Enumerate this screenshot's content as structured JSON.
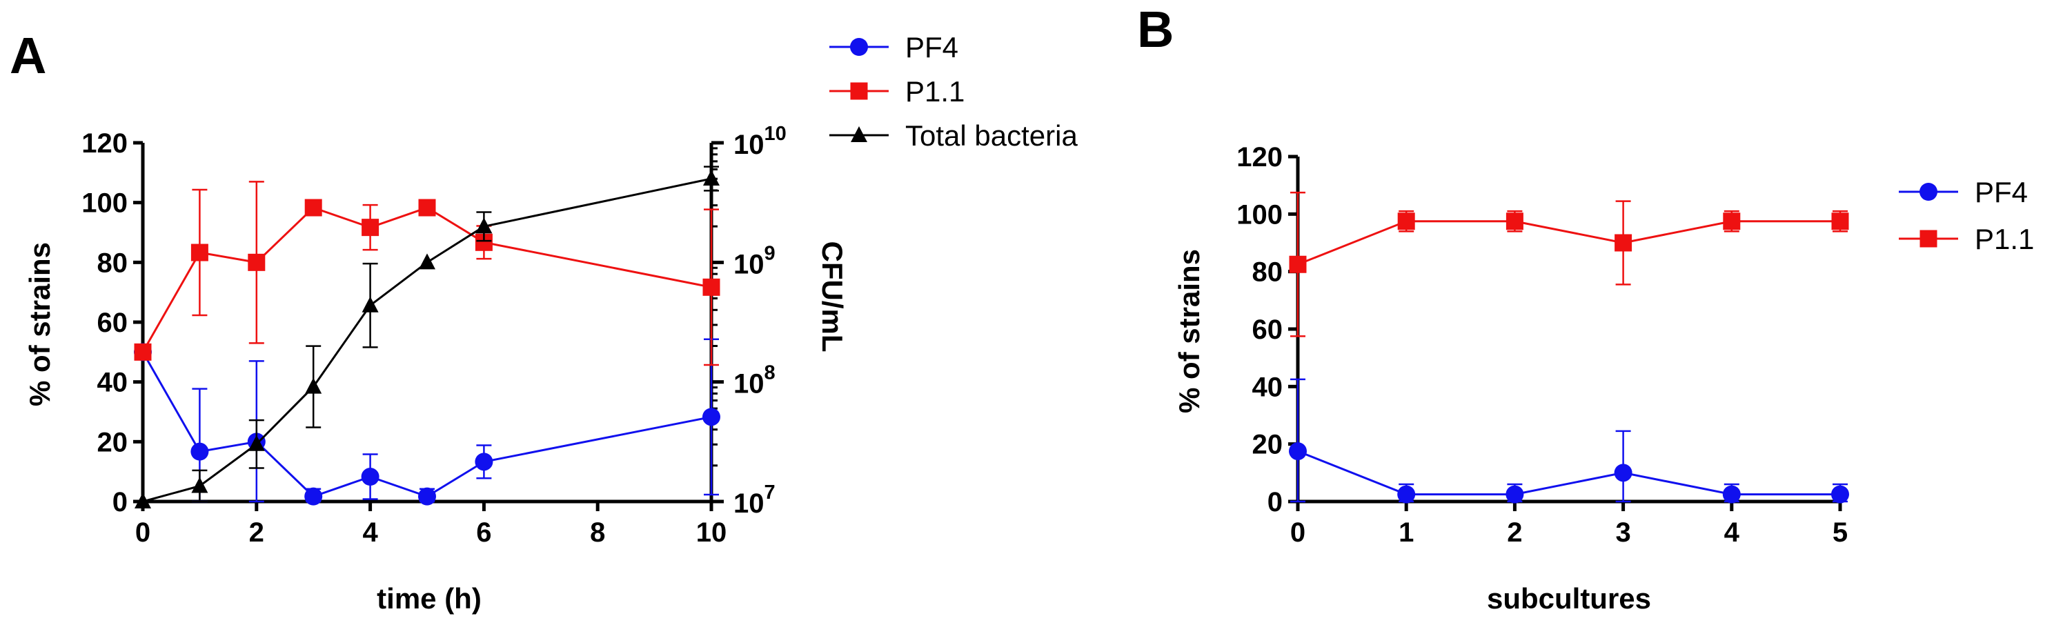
{
  "figure": {
    "panel_a_letter": "A",
    "panel_b_letter": "B"
  },
  "colors": {
    "pf4": "#1010ee",
    "p11": "#ee1111",
    "total": "#000000"
  },
  "chart_data": [
    {
      "panel": "A",
      "type": "line",
      "title": "",
      "xlabel": "time (h)",
      "ylabel": "% of strains",
      "ylabel_right": "CFU/mL",
      "xlim": [
        0,
        10
      ],
      "ylim": [
        0,
        120
      ],
      "ylim_right": [
        7,
        10
      ],
      "x_ticks": [
        0,
        2,
        4,
        6,
        8,
        10
      ],
      "y_ticks": [
        0,
        20,
        40,
        60,
        80,
        100,
        120
      ],
      "y_right_ticks": [
        {
          "base": "10",
          "exp": "7",
          "value": 7
        },
        {
          "base": "10",
          "exp": "8",
          "value": 8
        },
        {
          "base": "10",
          "exp": "9",
          "value": 9
        },
        {
          "base": "10",
          "exp": "10",
          "value": 10
        }
      ],
      "legend_position": "top-right, outside plot",
      "series": [
        {
          "name": "PF4",
          "marker": "circle",
          "color_key": "pf4",
          "axis": "left",
          "x": [
            0,
            1,
            2,
            3,
            4,
            5,
            6,
            10
          ],
          "y": [
            50,
            16.7,
            20,
            1.7,
            8.3,
            1.7,
            13.3,
            28.3
          ],
          "err": [
            0,
            21,
            27,
            2.5,
            7.5,
            2.5,
            5.5,
            26
          ]
        },
        {
          "name": "P1.1",
          "marker": "square",
          "color_key": "p11",
          "axis": "left",
          "x": [
            0,
            1,
            2,
            3,
            4,
            5,
            6,
            10
          ],
          "y": [
            50,
            83.3,
            80,
            98.3,
            91.7,
            98.3,
            86.7,
            71.7
          ],
          "err": [
            0,
            21,
            27,
            2.5,
            7.5,
            2.5,
            5.5,
            26
          ]
        },
        {
          "name": "Total bacteria",
          "marker": "triangle",
          "color_key": "total",
          "axis": "right",
          "x": [
            0,
            1,
            2,
            3,
            4,
            5,
            6,
            10
          ],
          "y_log10": [
            7.0,
            7.13,
            7.48,
            7.96,
            8.64,
            9.0,
            9.3,
            9.7
          ],
          "err_log10": [
            0,
            0.13,
            0.2,
            0.34,
            0.35,
            0,
            0.12,
            0.1
          ]
        }
      ]
    },
    {
      "panel": "B",
      "type": "line",
      "title": "",
      "xlabel": "subcultures",
      "ylabel": "% of strains",
      "xlim": [
        0,
        5
      ],
      "ylim": [
        0,
        120
      ],
      "x_ticks": [
        0,
        1,
        2,
        3,
        4,
        5
      ],
      "y_ticks": [
        0,
        20,
        40,
        60,
        80,
        100,
        120
      ],
      "legend_position": "right, outside plot",
      "series": [
        {
          "name": "PF4",
          "marker": "circle",
          "color_key": "pf4",
          "x": [
            0,
            1,
            2,
            3,
            4,
            5
          ],
          "y": [
            17.5,
            2.5,
            2.5,
            10,
            2.5,
            2.5
          ],
          "err": [
            25,
            3.5,
            3.5,
            14.5,
            3.5,
            3.5
          ]
        },
        {
          "name": "P1.1",
          "marker": "square",
          "color_key": "p11",
          "x": [
            0,
            1,
            2,
            3,
            4,
            5
          ],
          "y": [
            82.5,
            97.5,
            97.5,
            90,
            97.5,
            97.5
          ],
          "err": [
            25,
            3.5,
            3.5,
            14.5,
            3.5,
            3.5
          ]
        }
      ]
    }
  ]
}
